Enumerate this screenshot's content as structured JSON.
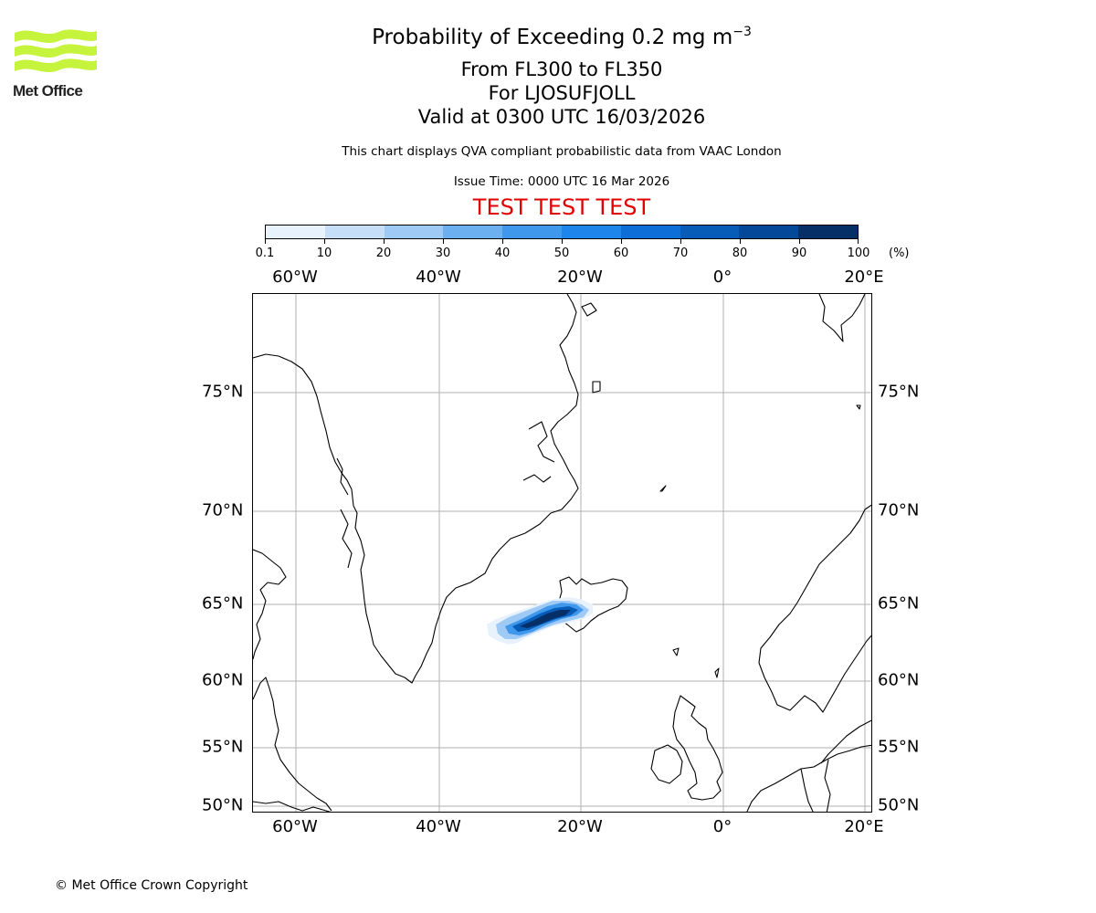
{
  "header": {
    "logo_text": "Met Office",
    "title_main": "Probability of Exceeding 0.2 mg m",
    "title_superscript": "−3",
    "level_range": "From FL300 to FL350",
    "volcano": "For LJOSUFJOLL",
    "valid_time": "Valid at 0300 UTC 16/03/2026",
    "description": "This chart displays QVA compliant probabilistic data from VAAC London",
    "issue_time": "Issue Time: 0000 UTC 16 Mar 2026",
    "test_banner": "TEST TEST TEST"
  },
  "colorbar": {
    "tick_labels": [
      "0.1",
      "10",
      "20",
      "30",
      "40",
      "50",
      "60",
      "70",
      "80",
      "90",
      "100"
    ],
    "unit": "(%)",
    "colors": [
      "#e8f2fc",
      "#c6def7",
      "#9fcaf5",
      "#6cb0f0",
      "#3f98ec",
      "#1e86ea",
      "#0c6ed6",
      "#075cb8",
      "#04489a",
      "#052f66"
    ]
  },
  "map": {
    "lon_labels": [
      "60°W",
      "40°W",
      "20°W",
      "0°",
      "20°E"
    ],
    "lat_labels": [
      "75°N",
      "70°N",
      "65°N",
      "60°N",
      "55°N",
      "50°N"
    ],
    "plume_probabilities_percent": {
      "core": 95,
      "inner": 75,
      "mid": 55,
      "outer": 25,
      "edge": 5
    }
  },
  "footer": {
    "copyright": "© Met Office Crown Copyright"
  }
}
